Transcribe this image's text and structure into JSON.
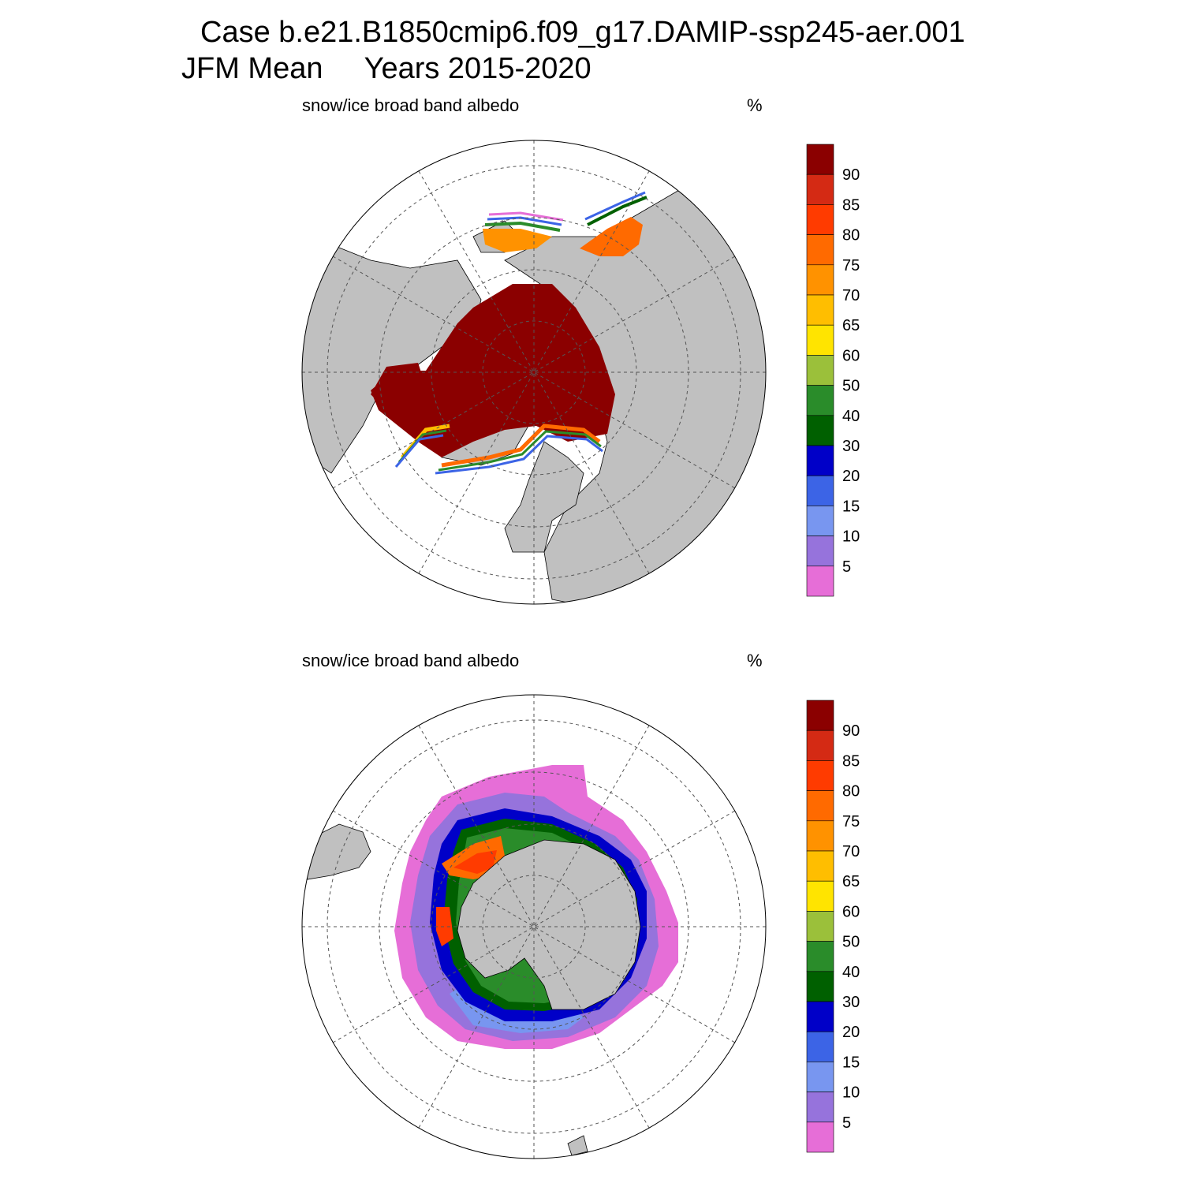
{
  "title": {
    "line1": "Case b.e21.B1850cmip6.f09_g17.DAMIP-ssp245-aer.001",
    "line2": "JFM Mean     Years 2015-2020"
  },
  "panels": [
    {
      "id": "north",
      "variable_label": "snow/ice broad band albedo",
      "units_label": "%",
      "hemisphere": "Northern"
    },
    {
      "id": "south",
      "variable_label": "snow/ice broad band albedo",
      "units_label": "%",
      "hemisphere": "Southern"
    }
  ],
  "colorbar": {
    "labels": [
      "90",
      "85",
      "80",
      "75",
      "70",
      "65",
      "60",
      "50",
      "40",
      "30",
      "20",
      "15",
      "10",
      "5"
    ],
    "colors_top_to_bottom": [
      "#8b0000",
      "#d42a14",
      "#ff3b00",
      "#ff6a00",
      "#ff9200",
      "#ffbe00",
      "#ffe400",
      "#9bc03a",
      "#2a8c2a",
      "#006000",
      "#0000c8",
      "#3c64e6",
      "#7896f0",
      "#9673dc",
      "#e66ed7"
    ]
  },
  "colors": {
    "land": "#c0c0c0",
    "ocean": "#ffffff",
    "ice_high": "#8b0000"
  }
}
